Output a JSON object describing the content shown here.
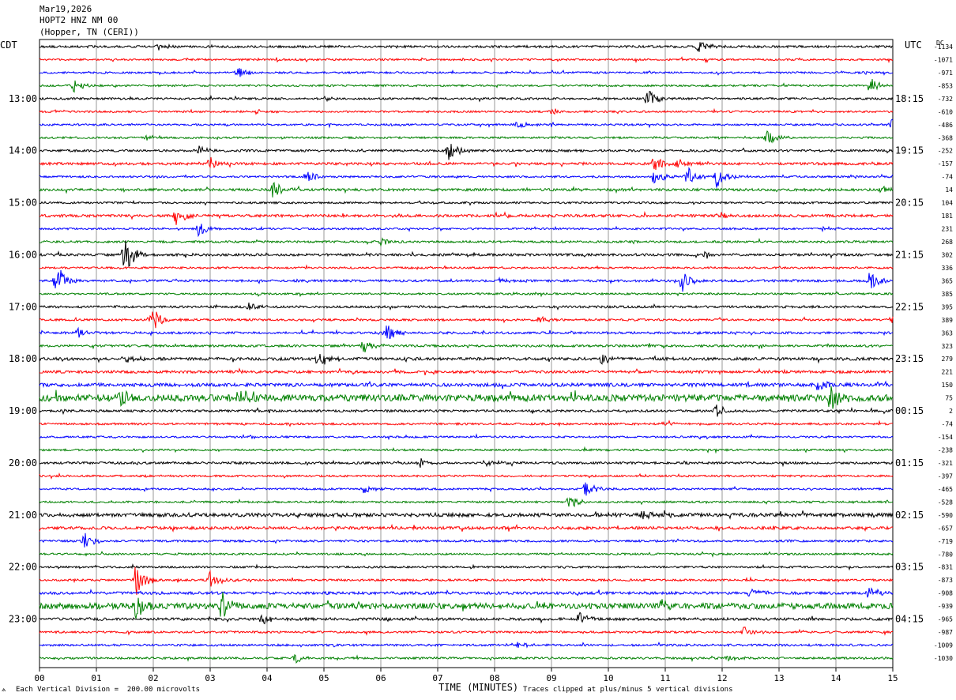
{
  "header": {
    "date": "Mar19,2026",
    "station": "HOPT2 HNZ NM 00",
    "location": "(Hopper, TN (CERI))"
  },
  "left_axis_title": "CDT",
  "right_axis_title": "UTC",
  "dc_title": "DC",
  "footer": {
    "scale_note": "Each Vertical Division =  200.00 microvolts",
    "clip_note": "Traces clipped at plus/minus 5 vertical divisions",
    "logo_glyph": "⟑"
  },
  "colors": {
    "trace_cycle": [
      "#000000",
      "#ff0000",
      "#0000ff",
      "#008000"
    ],
    "grid": "#808080"
  },
  "chart_data": {
    "type": "line",
    "title": "",
    "xlabel": "TIME (MINUTES)",
    "ylabel": "",
    "xlim": [
      0,
      15
    ],
    "x_ticks": [
      "00",
      "01",
      "02",
      "03",
      "04",
      "05",
      "06",
      "07",
      "08",
      "09",
      "10",
      "11",
      "12",
      "13",
      "14",
      "15"
    ],
    "grid": true,
    "n_traces": 48,
    "minutes_per_trace": 15,
    "left_hour_labels": [
      {
        "trace": 4,
        "label": "13:00"
      },
      {
        "trace": 8,
        "label": "14:00"
      },
      {
        "trace": 12,
        "label": "15:00"
      },
      {
        "trace": 16,
        "label": "16:00"
      },
      {
        "trace": 20,
        "label": "17:00"
      },
      {
        "trace": 24,
        "label": "18:00"
      },
      {
        "trace": 28,
        "label": "19:00"
      },
      {
        "trace": 32,
        "label": "20:00"
      },
      {
        "trace": 36,
        "label": "21:00"
      },
      {
        "trace": 40,
        "label": "22:00"
      },
      {
        "trace": 44,
        "label": "23:00"
      }
    ],
    "right_hour_labels": [
      {
        "trace": 4,
        "label": "18:15"
      },
      {
        "trace": 8,
        "label": "19:15"
      },
      {
        "trace": 12,
        "label": "20:15"
      },
      {
        "trace": 16,
        "label": "21:15"
      },
      {
        "trace": 20,
        "label": "22:15"
      },
      {
        "trace": 24,
        "label": "23:15"
      },
      {
        "trace": 28,
        "label": "00:15"
      },
      {
        "trace": 32,
        "label": "01:15"
      },
      {
        "trace": 36,
        "label": "02:15"
      },
      {
        "trace": 40,
        "label": "03:15"
      },
      {
        "trace": 44,
        "label": "04:15"
      }
    ],
    "dc_offsets": [
      "-1134",
      "-1071",
      "-971",
      "-853",
      "-732",
      "-610",
      "-486",
      "-368",
      "-252",
      "-157",
      "-74",
      "14",
      "104",
      "181",
      "231",
      "268",
      "302",
      "336",
      "365",
      "385",
      "395",
      "389",
      "363",
      "323",
      "279",
      "221",
      "150",
      "75",
      "2",
      "-74",
      "-154",
      "-238",
      "-321",
      "-397",
      "-465",
      "-528",
      "-590",
      "-657",
      "-719",
      "-780",
      "-831",
      "-873",
      "-908",
      "-939",
      "-965",
      "-987",
      "-1009",
      "-1030"
    ],
    "trace_noise": [
      1.2,
      1,
      1,
      1,
      1.1,
      1,
      1,
      1,
      1.2,
      1.3,
      1,
      1.3,
      1,
      1.4,
      1,
      1.1,
      1.3,
      1,
      1.2,
      1,
      1.2,
      1.1,
      1.2,
      1.2,
      1.5,
      1.4,
      1.8,
      3.5,
      1.2,
      1.1,
      1,
      1,
      1.2,
      1,
      1,
      1,
      1.9,
      1.5,
      1.1,
      1,
      1,
      1.1,
      1.4,
      3.0,
      1.4,
      1.1,
      1.1,
      1.1
    ],
    "events": [
      {
        "trace": 0,
        "minute": 11.6,
        "amp": 9
      },
      {
        "trace": 0,
        "minute": 2.1,
        "amp": 4
      },
      {
        "trace": 2,
        "minute": 3.5,
        "amp": 8
      },
      {
        "trace": 2,
        "minute": 14.5,
        "amp": 3
      },
      {
        "trace": 3,
        "minute": 0.6,
        "amp": 8
      },
      {
        "trace": 3,
        "minute": 14.6,
        "amp": 12
      },
      {
        "trace": 4,
        "minute": 10.7,
        "amp": 13
      },
      {
        "trace": 4,
        "minute": 5,
        "amp": 3
      },
      {
        "trace": 5,
        "minute": 9,
        "amp": 5
      },
      {
        "trace": 5,
        "minute": 3.8,
        "amp": 3
      },
      {
        "trace": 6,
        "minute": 8.4,
        "amp": 6
      },
      {
        "trace": 6,
        "minute": 15,
        "amp": 14
      },
      {
        "trace": 7,
        "minute": 12.8,
        "amp": 11
      },
      {
        "trace": 7,
        "minute": 1.9,
        "amp": 3
      },
      {
        "trace": 8,
        "minute": 7.2,
        "amp": 12
      },
      {
        "trace": 8,
        "minute": 2.8,
        "amp": 6
      },
      {
        "trace": 9,
        "minute": 3,
        "amp": 9
      },
      {
        "trace": 9,
        "minute": 10.8,
        "amp": 10
      },
      {
        "trace": 9,
        "minute": 11.2,
        "amp": 8
      },
      {
        "trace": 10,
        "minute": 4.7,
        "amp": 10
      },
      {
        "trace": 10,
        "minute": 10.8,
        "amp": 11
      },
      {
        "trace": 10,
        "minute": 11.4,
        "amp": 16
      },
      {
        "trace": 10,
        "minute": 11.9,
        "amp": 14
      },
      {
        "trace": 11,
        "minute": 4.1,
        "amp": 12
      },
      {
        "trace": 11,
        "minute": 14.8,
        "amp": 4
      },
      {
        "trace": 13,
        "minute": 2.4,
        "amp": 12
      },
      {
        "trace": 13,
        "minute": 12,
        "amp": 4
      },
      {
        "trace": 14,
        "minute": 2.8,
        "amp": 11
      },
      {
        "trace": 14,
        "minute": 13.8,
        "amp": 5
      },
      {
        "trace": 15,
        "minute": 6,
        "amp": 5
      },
      {
        "trace": 16,
        "minute": 1.5,
        "amp": 24
      },
      {
        "trace": 16,
        "minute": 11.7,
        "amp": 5
      },
      {
        "trace": 18,
        "minute": 0.3,
        "amp": 22
      },
      {
        "trace": 18,
        "minute": 11.3,
        "amp": 16
      },
      {
        "trace": 18,
        "minute": 14.6,
        "amp": 13
      },
      {
        "trace": 18,
        "minute": 8.1,
        "amp": 4
      },
      {
        "trace": 20,
        "minute": 3.7,
        "amp": 6
      },
      {
        "trace": 21,
        "minute": 2,
        "amp": 14
      },
      {
        "trace": 21,
        "minute": 8.8,
        "amp": 4
      },
      {
        "trace": 21,
        "minute": 15,
        "amp": 5
      },
      {
        "trace": 22,
        "minute": 0.7,
        "amp": 10
      },
      {
        "trace": 22,
        "minute": 6.1,
        "amp": 12
      },
      {
        "trace": 23,
        "minute": 5.7,
        "amp": 10
      },
      {
        "trace": 24,
        "minute": 1.5,
        "amp": 8
      },
      {
        "trace": 24,
        "minute": 4.9,
        "amp": 10
      },
      {
        "trace": 24,
        "minute": 9.9,
        "amp": 8
      },
      {
        "trace": 26,
        "minute": 13.7,
        "amp": 9
      },
      {
        "trace": 27,
        "minute": 13.9,
        "amp": 18
      },
      {
        "trace": 27,
        "minute": 3.5,
        "amp": 14
      },
      {
        "trace": 27,
        "minute": 1.4,
        "amp": 12
      },
      {
        "trace": 28,
        "minute": 11.9,
        "amp": 9
      },
      {
        "trace": 29,
        "minute": 11,
        "amp": 5
      },
      {
        "trace": 30,
        "minute": 3.6,
        "amp": 3
      },
      {
        "trace": 32,
        "minute": 6.7,
        "amp": 5
      },
      {
        "trace": 32,
        "minute": 7.8,
        "amp": 7
      },
      {
        "trace": 34,
        "minute": 9.6,
        "amp": 10
      },
      {
        "trace": 34,
        "minute": 5.7,
        "amp": 6
      },
      {
        "trace": 35,
        "minute": 9.3,
        "amp": 9
      },
      {
        "trace": 36,
        "minute": 10.6,
        "amp": 8
      },
      {
        "trace": 38,
        "minute": 0.8,
        "amp": 11
      },
      {
        "trace": 41,
        "minute": 1.7,
        "amp": 22
      },
      {
        "trace": 41,
        "minute": 3,
        "amp": 14
      },
      {
        "trace": 42,
        "minute": 14.6,
        "amp": 10
      },
      {
        "trace": 42,
        "minute": 12.5,
        "amp": 6
      },
      {
        "trace": 43,
        "minute": 1.7,
        "amp": 22
      },
      {
        "trace": 43,
        "minute": 3.2,
        "amp": 18
      },
      {
        "trace": 43,
        "minute": 10.9,
        "amp": 12
      },
      {
        "trace": 44,
        "minute": 3.9,
        "amp": 8
      },
      {
        "trace": 44,
        "minute": 9.5,
        "amp": 9
      },
      {
        "trace": 45,
        "minute": 12.4,
        "amp": 8
      },
      {
        "trace": 46,
        "minute": 8.4,
        "amp": 5
      },
      {
        "trace": 47,
        "minute": 4.5,
        "amp": 6
      },
      {
        "trace": 47,
        "minute": 12.1,
        "amp": 4
      }
    ]
  }
}
